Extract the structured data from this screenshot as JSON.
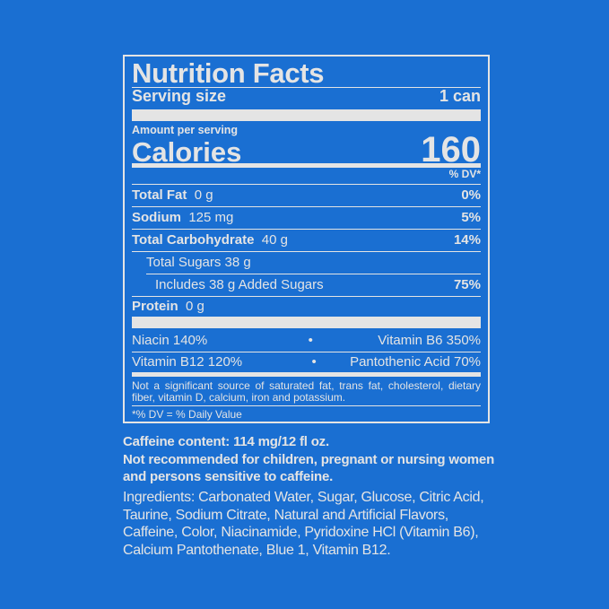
{
  "label": {
    "title": "Nutrition Facts",
    "serving_size_label": "Serving size",
    "serving_size_value": "1 can",
    "amount_per_serving": "Amount per serving",
    "calories_label": "Calories",
    "calories_value": "160",
    "dv_header": "% DV*",
    "nutrients": [
      {
        "name": "Total Fat",
        "amount": "0 g",
        "dv": "0%"
      },
      {
        "name": "Sodium",
        "amount": "125 mg",
        "dv": "5%"
      },
      {
        "name": "Total Carbohydrate",
        "amount": "40 g",
        "dv": "14%"
      },
      {
        "name": "Total Sugars 38 g",
        "amount": "",
        "dv": ""
      },
      {
        "name": "Includes 38 g Added Sugars",
        "amount": "",
        "dv": "75%"
      },
      {
        "name": "Protein",
        "amount": "0 g",
        "dv": ""
      }
    ],
    "vitamins": [
      {
        "left": "Niacin 140%",
        "right": "Vitamin B6 350%"
      },
      {
        "left": "Vitamin B12 120%",
        "right": "Pantothenic Acid 70%"
      }
    ],
    "separator": "•",
    "not_significant": "Not a significant source of saturated fat, trans fat, cholesterol, dietary fiber, vitamin D, calcium, iron and potassium.",
    "footnote": "*% DV = % Daily Value"
  },
  "caffeine": {
    "line1": "Caffeine content: 114 mg/12 fl oz.",
    "line2": "Not recommended for children, pregnant or nursing women and persons sensitive to caffeine."
  },
  "ingredients": "Ingredients: Carbonated Water, Sugar, Glucose, Citric Acid, Taurine, Sodium Citrate, Natural and Artificial Flavors, Caffeine, Color, Niacinamide, Pyridoxine HCl (Vitamin B6), Calcium Pantothenate, Blue 1, Vitamin B12.",
  "colors": {
    "background": "#1a6fd2",
    "text": "#e4e4e4"
  }
}
